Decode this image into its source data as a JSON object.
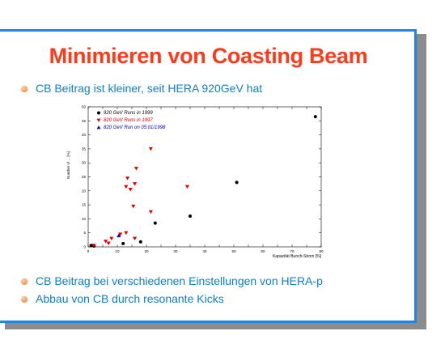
{
  "slide": {
    "title": "Minimieren von Coasting Beam",
    "bullets": [
      "CB Beitrag ist kleiner, seit HERA 920GeV hat",
      "CB Beitrag bei verschiedenen Einstellungen von HERA-p",
      "Abbau von CB durch resonante Kicks"
    ]
  },
  "colors": {
    "title": "#ff3a1a",
    "bullet_text": "#0c7fd0",
    "frame": "#1f86e8",
    "series_920": "#000000",
    "series_820": "#e00000",
    "series_820_run": "#0000cc"
  },
  "chart_data": {
    "type": "scatter",
    "title": "",
    "xlabel": "Kapazität Bunch-Strom [%]",
    "ylabel": "Number of ... [%]",
    "xlim": [
      0,
      80
    ],
    "ylim": [
      0,
      50
    ],
    "x_ticks": [
      "0",
      "5",
      "10",
      "15",
      "20",
      "25",
      "30",
      "35",
      "40",
      "45",
      "50",
      "55",
      "60",
      "65",
      "70",
      "75",
      "80"
    ],
    "y_ticks": [
      "0",
      "5",
      "10",
      "15",
      "20",
      "25",
      "30",
      "35",
      "40",
      "45",
      "50"
    ],
    "legend_position": "top-left",
    "series": [
      {
        "name": "920 GeV Runs in 1999",
        "marker": "circle",
        "color": "#000000",
        "points": [
          [
            1,
            0.5
          ],
          [
            2,
            0.3
          ],
          [
            12,
            1.2
          ],
          [
            18,
            1.8
          ],
          [
            23,
            8.5
          ],
          [
            35,
            11
          ],
          [
            51,
            23
          ],
          [
            78,
            46.5
          ]
        ]
      },
      {
        "name": "820 GeV Runs in 1997",
        "marker": "triangle-down",
        "color": "#e00000",
        "points": [
          [
            2,
            0.5
          ],
          [
            6,
            2
          ],
          [
            7,
            1.3
          ],
          [
            8,
            3
          ],
          [
            11,
            4.5
          ],
          [
            13,
            5
          ],
          [
            13,
            21.5
          ],
          [
            13.5,
            24.5
          ],
          [
            14.5,
            20.5
          ],
          [
            15.5,
            14.5
          ],
          [
            16,
            22.5
          ],
          [
            16,
            3
          ],
          [
            16.5,
            28
          ],
          [
            21.5,
            35
          ],
          [
            21.5,
            12.5
          ],
          [
            34,
            21.5
          ]
        ]
      },
      {
        "name": "820 GeV Run on 05.01/1998",
        "marker": "triangle-up",
        "color": "#0000cc",
        "points": [
          [
            10.5,
            4
          ]
        ]
      }
    ]
  }
}
